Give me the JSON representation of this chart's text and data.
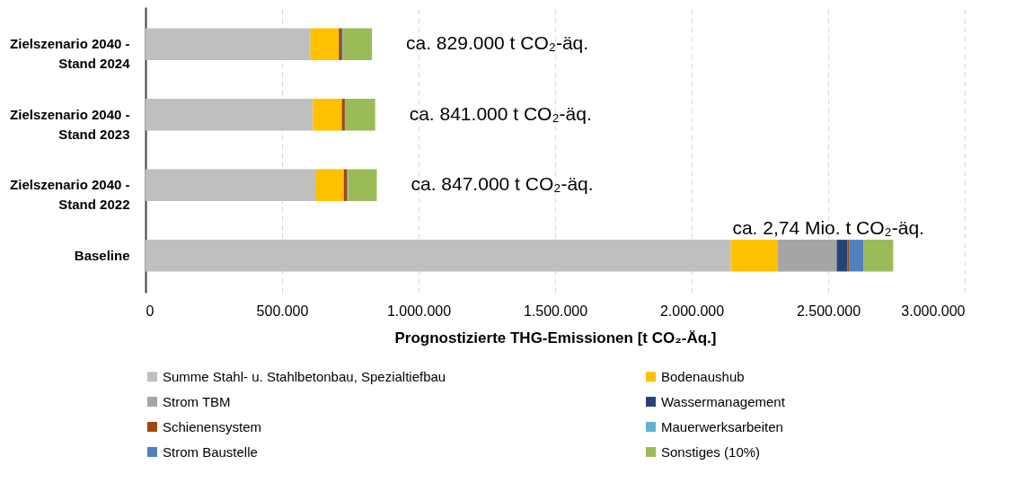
{
  "chart_data": {
    "type": "bar",
    "orientation": "horizontal",
    "stacked": true,
    "xlabel": "Prognostizierte THG-Emissionen [t CO₂-Äq.]",
    "categories": [
      "Zielszenario 2040 - Stand 2024",
      "Zielszenario 2040 - Stand 2023",
      "Zielszenario 2040 - Stand 2022",
      "Baseline"
    ],
    "series": [
      {
        "name": "Summe Stahl- u. Stahlbetonbau, Spezialtiefbau",
        "color": "#bfbfbf",
        "values": [
          604000,
          613000,
          622000,
          2143000
        ]
      },
      {
        "name": "Bodenaushub",
        "color": "#ffc000",
        "values": [
          104000,
          106000,
          104000,
          173000
        ]
      },
      {
        "name": "Strom TBM",
        "color": "#a5a5a5",
        "values": [
          0,
          0,
          0,
          215000
        ]
      },
      {
        "name": "Wassermanagement",
        "color": "#264478",
        "values": [
          0,
          0,
          0,
          40000
        ]
      },
      {
        "name": "Schienensystem",
        "color": "#9e480e",
        "values": [
          12000,
          11000,
          13000,
          7000
        ]
      },
      {
        "name": "Mauerwerksarbeiten",
        "color": "#5fb3d0",
        "values": [
          3000,
          3000,
          3000,
          null
        ]
      },
      {
        "name": "Strom Baustelle",
        "color": "#4e81bd",
        "values": [
          0,
          0,
          0,
          52000
        ]
      },
      {
        "name": "Sonstiges (10%)",
        "color": "#9bbb59",
        "values": [
          106000,
          108000,
          105000,
          108000
        ]
      }
    ],
    "xlim": [
      0,
      3000000
    ],
    "xticks": [
      0,
      {
        "value": 500000,
        "label": "500.000"
      },
      {
        "value": 1000000,
        "label": "1.000.000"
      },
      {
        "value": 1500000,
        "label": "1.500.000"
      },
      {
        "value": 2000000,
        "label": "2.000.000"
      },
      {
        "value": 2500000,
        "label": "2.500.000"
      },
      {
        "value": 3000000,
        "label": "3.000.000"
      }
    ],
    "grid": "x",
    "legend": "bottom",
    "annotations": [
      {
        "text": "ca. 829.000 t CO₂-äq.",
        "x": 829000,
        "y": "Zielszenario 2040 - Stand 2024"
      },
      {
        "text": "ca. 841.000 t CO₂-äq.",
        "x": 841000,
        "y": "Zielszenario 2040 - Stand 2023"
      },
      {
        "text": "ca. 847.000 t CO₂-äq.",
        "x": 847000,
        "y": "Zielszenario 2040 - Stand 2022"
      },
      {
        "text": "ca. 2,74 Mio. t CO₂-äq.",
        "x": 2740000,
        "y": "Baseline"
      }
    ]
  }
}
